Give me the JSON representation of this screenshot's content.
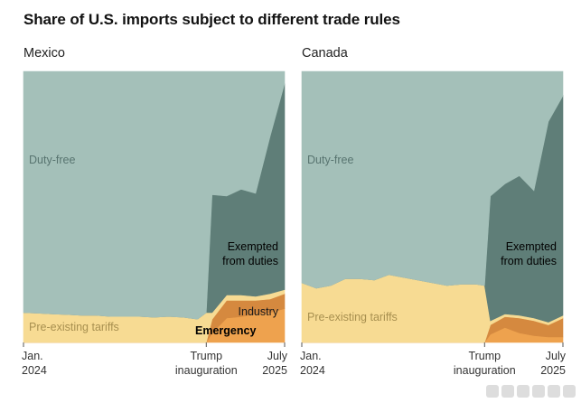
{
  "title": "Share of U.S. imports subject to different trade rules",
  "colors": {
    "duty_free": "#a4c0b9",
    "exempted": "#5f7e78",
    "pre_existing": "#f7db93",
    "industry": "#d5893f",
    "emergency": "#eea24e",
    "axis": "#555555"
  },
  "chart_data": [
    {
      "type": "area",
      "title": "Mexico",
      "stacked": true,
      "ylim": [
        0,
        100
      ],
      "x_ticks": [
        {
          "x": 0,
          "label": [
            "Jan.",
            "2024"
          ]
        },
        {
          "x": 12.6,
          "label": [
            "Trump",
            "inauguration"
          ]
        },
        {
          "x": 18,
          "label": [
            "July",
            "2025"
          ]
        }
      ],
      "x": [
        0,
        1,
        2,
        3,
        4,
        5,
        6,
        7,
        8,
        9,
        10,
        11,
        12,
        12.6,
        13,
        14,
        15,
        16,
        17,
        18
      ],
      "series": [
        {
          "name": "Emergency",
          "key": "emergency",
          "values": [
            0,
            0,
            0,
            0,
            0,
            0,
            0,
            0,
            0,
            0,
            0,
            0,
            0,
            0,
            3.5,
            9,
            9.5,
            10.5,
            11,
            12.5
          ]
        },
        {
          "name": "Industry",
          "key": "industry",
          "values": [
            0,
            0,
            0,
            0,
            0,
            0,
            0,
            0,
            0,
            0,
            0,
            0,
            0,
            0,
            5,
            6.5,
            6,
            5,
            5,
            5.5
          ]
        },
        {
          "name": "Pre-existing tariffs",
          "key": "pre_existing",
          "values": [
            11,
            10.8,
            10.5,
            10.3,
            10,
            10,
            9.6,
            9.6,
            9.6,
            9.3,
            9.6,
            9.3,
            8.6,
            11,
            2.5,
            2,
            2,
            1.5,
            2,
            1.5
          ]
        },
        {
          "name": "Exempted from duties",
          "key": "exempted",
          "values": [
            0,
            0,
            0,
            0,
            0,
            0,
            0,
            0,
            0,
            0,
            0,
            0,
            0,
            0,
            43.5,
            36.5,
            39,
            38,
            58,
            76
          ]
        },
        {
          "name": "Duty-free",
          "key": "duty_free",
          "values": [
            89,
            89.2,
            89.5,
            89.7,
            90,
            90,
            90.4,
            90.4,
            90.4,
            90.7,
            90.4,
            90.7,
            91.4,
            89,
            45.5,
            46,
            43.5,
            45,
            24,
            4.5
          ]
        }
      ],
      "labels": {
        "duty_free": "Duty-free",
        "exempted": [
          "Exempted",
          "from duties"
        ],
        "pre_existing": "Pre-existing tariffs",
        "industry": "Industry",
        "emergency": "Emergency"
      }
    },
    {
      "type": "area",
      "title": "Canada",
      "stacked": true,
      "ylim": [
        0,
        100
      ],
      "x_ticks": [
        {
          "x": 0,
          "label": [
            "Jan.",
            "2024"
          ]
        },
        {
          "x": 12.6,
          "label": [
            "Trump",
            "inauguration"
          ]
        },
        {
          "x": 18,
          "label": [
            "July",
            "2025"
          ]
        }
      ],
      "x": [
        0,
        1,
        2,
        3,
        4,
        5,
        6,
        7,
        8,
        9,
        10,
        11,
        12,
        12.6,
        13,
        14,
        15,
        16,
        17,
        18
      ],
      "series": [
        {
          "name": "Emergency",
          "key": "emergency",
          "values": [
            0,
            0,
            0,
            0,
            0,
            0,
            0,
            0,
            0,
            0,
            0,
            0,
            0,
            0,
            3,
            5.5,
            3.5,
            2.5,
            2,
            2
          ]
        },
        {
          "name": "Industry",
          "key": "industry",
          "values": [
            0,
            0,
            0,
            0,
            0,
            0,
            0,
            0,
            0,
            0,
            0,
            0,
            0,
            0,
            3.5,
            4,
            5.5,
            5.5,
            4.5,
            7
          ]
        },
        {
          "name": "Pre-existing tariffs",
          "key": "pre_existing",
          "values": [
            22,
            20,
            21,
            23.5,
            23.5,
            23,
            25,
            24,
            23,
            22,
            21,
            21.5,
            21.5,
            21,
            1.5,
            1,
            1,
            1,
            1,
            1
          ]
        },
        {
          "name": "Exempted from duties",
          "key": "exempted",
          "values": [
            0,
            0,
            0,
            0,
            0,
            0,
            0,
            0,
            0,
            0,
            0,
            0,
            0,
            0,
            46,
            48,
            51.5,
            47,
            74,
            81
          ]
        },
        {
          "name": "Duty-free",
          "key": "duty_free",
          "values": [
            78,
            80,
            79,
            76.5,
            76.5,
            77,
            75,
            76,
            77,
            78,
            79,
            78.5,
            78.5,
            79,
            46,
            41.5,
            38.5,
            44,
            18.5,
            9
          ]
        }
      ],
      "labels": {
        "duty_free": "Duty-free",
        "exempted": [
          "Exempted",
          "from duties"
        ],
        "pre_existing": "Pre-existing tariffs"
      }
    }
  ]
}
